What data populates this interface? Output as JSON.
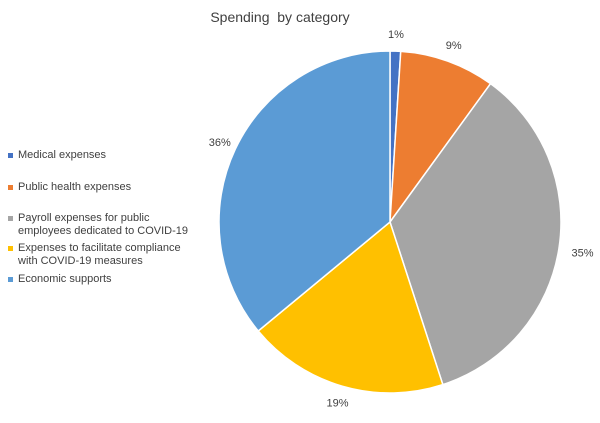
{
  "chart_data": {
    "type": "pie",
    "title": "Spending  by category",
    "categories": [
      "Medical expenses",
      "Public health expenses",
      "Payroll expenses for public\nemployees dedicated to COVID-19",
      "Expenses to facilitate compliance\nwith COVID-19 measures",
      "Economic supports"
    ],
    "values": [
      1,
      9,
      35,
      19,
      36
    ],
    "data_labels": [
      "1%",
      "9%",
      "35%",
      "19%",
      "36%"
    ],
    "colors": [
      "#4472C4",
      "#ED7D31",
      "#A5A5A5",
      "#FFC000",
      "#5B9BD5"
    ],
    "legend_position": "left",
    "start_angle": "top, clockwise"
  }
}
